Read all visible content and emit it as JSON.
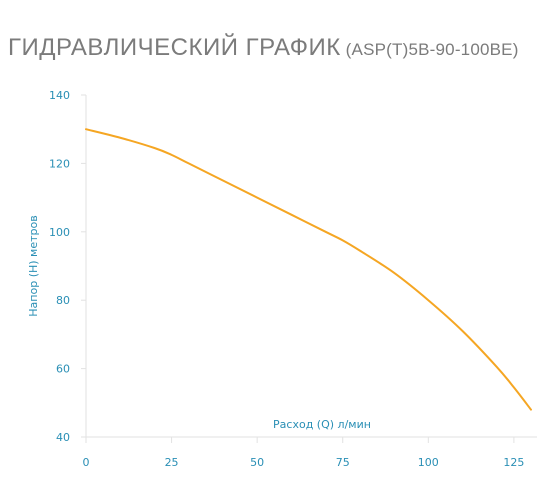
{
  "header": {
    "title_main": "ГИДРАВЛИЧЕСКИЙ ГРАФИК",
    "title_model": "(ASP(T)5B-90-100BE)"
  },
  "chart_data": {
    "type": "line",
    "xlabel": "Расход (Q) л/мин",
    "ylabel": "Напор (Н) метров",
    "xlim": [
      0,
      130
    ],
    "ylim": [
      40,
      140
    ],
    "xticks": [
      0,
      25,
      50,
      75,
      100,
      125
    ],
    "yticks": [
      40,
      60,
      80,
      100,
      120,
      140
    ],
    "grid": false,
    "line_color": "#f5a623",
    "axis_color": "#e2e2e2",
    "label_color": "#2a8fb5",
    "series": [
      {
        "x": [
          0,
          10,
          20,
          25,
          30,
          40,
          50,
          60,
          70,
          75,
          80,
          90,
          100,
          110,
          120,
          125,
          130
        ],
        "y": [
          130,
          127.5,
          124.5,
          122.5,
          120,
          115,
          110,
          105,
          100,
          97.5,
          94.5,
          88,
          80,
          71,
          60.5,
          54.5,
          48
        ]
      }
    ]
  }
}
